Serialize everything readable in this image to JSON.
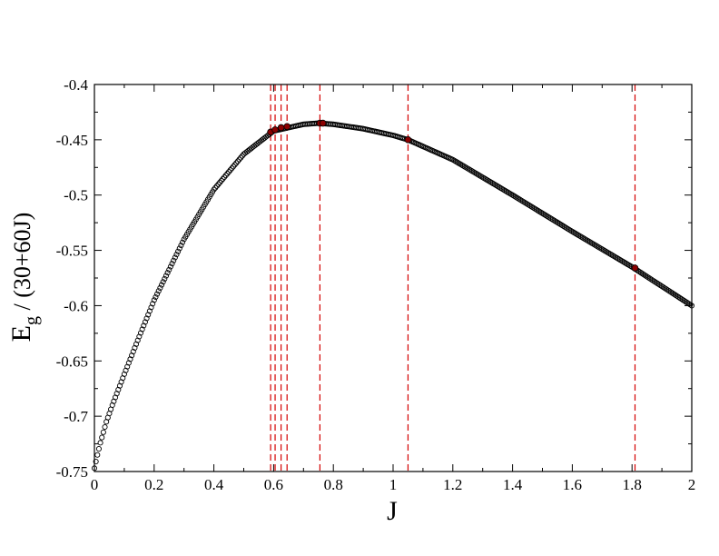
{
  "chart_data": {
    "type": "scatter",
    "title": "",
    "xlabel": "J",
    "ylabel_main": "E",
    "ylabel_sub": "g",
    "ylabel_rest": " / (30+60J)",
    "xlim": [
      0,
      2
    ],
    "ylim": [
      -0.75,
      -0.4
    ],
    "xticks": [
      0,
      0.2,
      0.4,
      0.6,
      0.8,
      1,
      1.2,
      1.4,
      1.6,
      1.8,
      2
    ],
    "xtick_labels": [
      "0",
      "0.2",
      "0.4",
      "0.6",
      "0.8",
      "1",
      "1.2",
      "1.4",
      "1.6",
      "1.8",
      "2"
    ],
    "yticks": [
      -0.75,
      -0.7,
      -0.65,
      -0.6,
      -0.55,
      -0.5,
      -0.45,
      -0.4
    ],
    "ytick_labels": [
      "-0.75",
      "-0.7",
      "-0.65",
      "-0.6",
      "-0.55",
      "-0.5",
      "-0.45",
      "-0.4"
    ],
    "grid": false,
    "curve_anchors": {
      "x": [
        0,
        0.01,
        0.02,
        0.04,
        0.06,
        0.1,
        0.15,
        0.2,
        0.3,
        0.4,
        0.5,
        0.6,
        0.7,
        0.75,
        0.8,
        0.9,
        1.0,
        1.05,
        1.2,
        1.4,
        1.6,
        1.8,
        2.0
      ],
      "y": [
        -0.747,
        -0.735,
        -0.724,
        -0.705,
        -0.69,
        -0.662,
        -0.628,
        -0.595,
        -0.54,
        -0.495,
        -0.463,
        -0.442,
        -0.436,
        -0.435,
        -0.436,
        -0.44,
        -0.446,
        -0.45,
        -0.468,
        -0.5,
        -0.533,
        -0.565,
        -0.6
      ],
      "step": 0.005
    },
    "transition_lines_x": [
      0.59,
      0.605,
      0.625,
      0.645,
      0.755,
      1.05,
      1.81
    ],
    "highlight_points": [
      {
        "x": 0.59,
        "y": -0.443
      },
      {
        "x": 0.605,
        "y": -0.441
      },
      {
        "x": 0.625,
        "y": -0.439
      },
      {
        "x": 0.645,
        "y": -0.438
      },
      {
        "x": 0.755,
        "y": -0.435
      },
      {
        "x": 0.765,
        "y": -0.435
      },
      {
        "x": 1.05,
        "y": -0.45
      },
      {
        "x": 1.81,
        "y": -0.566
      }
    ],
    "colors": {
      "marker_stroke": "#000000",
      "highlight_fill": "#8b0000",
      "transition_line": "#d40000",
      "axis": "#000000"
    }
  }
}
